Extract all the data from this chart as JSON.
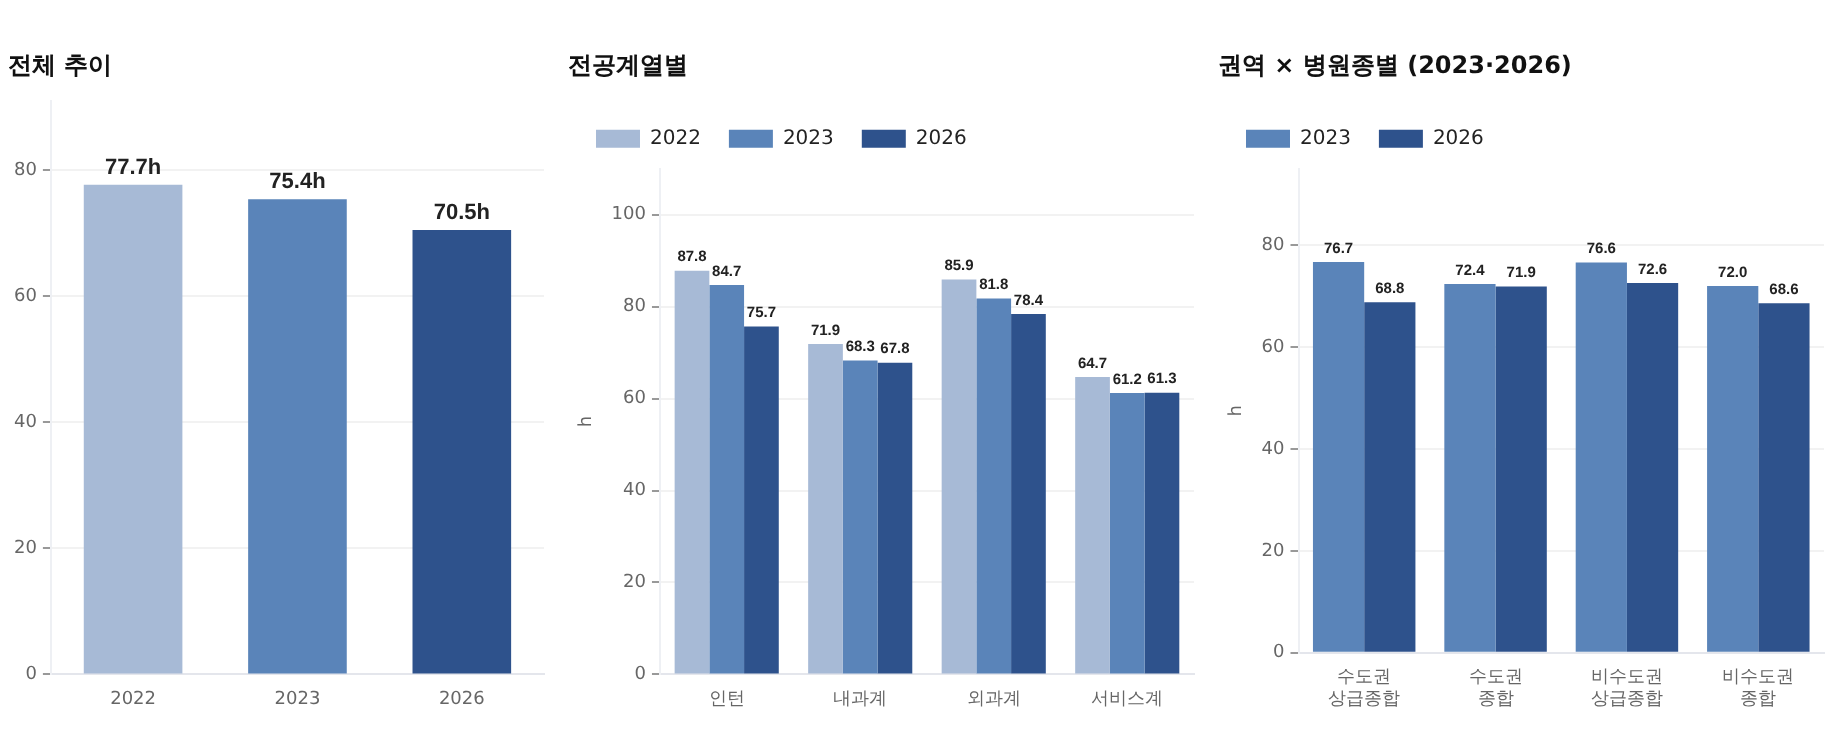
{
  "chart_data": [
    {
      "type": "bar",
      "title": "전체 추이",
      "categories": [
        "2022",
        "2023",
        "2026"
      ],
      "values": [
        77.7,
        75.4,
        70.5
      ],
      "colors": [
        "#a7bad6",
        "#5a84b9",
        "#2e528c"
      ],
      "value_labels": [
        "77.7h",
        "75.4h",
        "70.5h"
      ],
      "ylim": [
        0,
        91
      ],
      "yticks": [
        0,
        20,
        40,
        60,
        80
      ],
      "grid": "y",
      "legend": false
    },
    {
      "type": "bar",
      "title": "전공계열별",
      "ylabel": "h",
      "categories": [
        "인턴",
        "내과계",
        "외과계",
        "서비스계"
      ],
      "series": [
        {
          "name": "2022",
          "color": "#a7bad6",
          "values": [
            87.8,
            71.9,
            85.9,
            64.7
          ],
          "value_labels": [
            "87.8",
            "71.9",
            "85.9",
            "64.7"
          ]
        },
        {
          "name": "2023",
          "color": "#5a84b9",
          "values": [
            84.7,
            68.3,
            81.8,
            61.2
          ],
          "value_labels": [
            "84.7",
            "68.3",
            "81.8",
            "61.2"
          ]
        },
        {
          "name": "2026",
          "color": "#2e528c",
          "values": [
            75.7,
            67.8,
            78.4,
            61.3
          ],
          "value_labels": [
            "75.7",
            "67.8",
            "78.4",
            "61.3"
          ]
        }
      ],
      "ylim": [
        0,
        110
      ],
      "yticks": [
        0,
        20,
        40,
        60,
        80,
        100
      ],
      "grid": "y",
      "legend": "top left"
    },
    {
      "type": "bar",
      "title": "권역 × 병원종별 (2023·2026)",
      "ylabel": "h",
      "categories": [
        "수도권 상급종합",
        "수도권 종합",
        "비수도권 상급종합",
        "비수도권 종합"
      ],
      "series": [
        {
          "name": "2023",
          "color": "#5a84b9",
          "values": [
            76.7,
            72.4,
            76.6,
            72.0
          ],
          "value_labels": [
            "76.7",
            "72.4",
            "76.6",
            "72.0"
          ]
        },
        {
          "name": "2026",
          "color": "#2e528c",
          "values": [
            68.8,
            71.9,
            72.6,
            68.6
          ],
          "value_labels": [
            "68.8",
            "71.9",
            "72.6",
            "68.6"
          ]
        }
      ],
      "ylim": [
        0,
        95
      ],
      "yticks": [
        0,
        20,
        40,
        60,
        80
      ],
      "grid": "y",
      "legend": "top left"
    }
  ]
}
